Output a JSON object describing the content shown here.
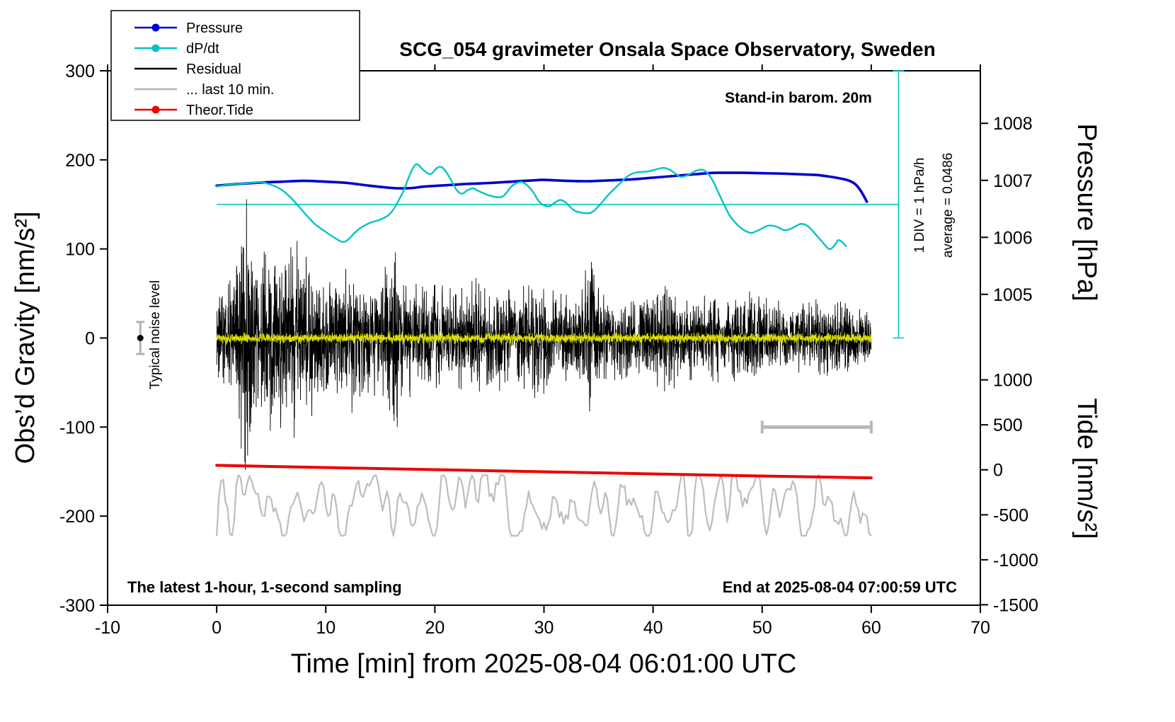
{
  "title": "SCG_054 gravimeter Onsala Space Observatory, Sweden",
  "annotations": {
    "barometer": "Stand-in barom. 20m",
    "sampling": "The latest 1-hour, 1-second sampling",
    "end_time": "End at 2025-08-04 07:00:59 UTC",
    "div_label": "1 DIV = 1 hPa/h",
    "average_label": "average = 0.0486",
    "noise_label": "Typical noise level"
  },
  "legend": {
    "items": [
      {
        "label": "Pressure",
        "color": "#0000cd",
        "marker": true
      },
      {
        "label": "dP/dt",
        "color": "#00c3c3",
        "marker": true
      },
      {
        "label": "Residual",
        "color": "#000000",
        "marker": false
      },
      {
        "label": "... last 10 min.",
        "color": "#b0b0b0",
        "marker": false
      },
      {
        "label": "Theor.Tide",
        "color": "#ee0000",
        "marker": true
      }
    ]
  },
  "axes": {
    "x": {
      "label": "Time [min] from 2025-08-04 06:01:00 UTC",
      "min": -10,
      "max": 70,
      "ticks": [
        -10,
        0,
        10,
        20,
        30,
        40,
        50,
        60,
        70
      ]
    },
    "y_left": {
      "label": "Obs’d Gravity [nm/s²]",
      "min": -300,
      "max": 300,
      "ticks": [
        -300,
        -200,
        -100,
        0,
        100,
        200,
        300
      ]
    },
    "y_right_pressure": {
      "label": "Pressure [hPa]",
      "ticks": [
        {
          "label": "1008",
          "g": 241
        },
        {
          "label": "1007",
          "g": 177
        },
        {
          "label": "1006",
          "g": 113
        },
        {
          "label": "1005",
          "g": 49
        }
      ]
    },
    "y_right_tide": {
      "label": "Tide [nm/s²]",
      "ticks": [
        {
          "label": "1000",
          "g": -47
        },
        {
          "label": "500",
          "g": -97.5
        },
        {
          "label": "0",
          "g": -148
        },
        {
          "label": "-500",
          "g": -198.5
        },
        {
          "label": "-1000",
          "g": -249
        },
        {
          "label": "-1500",
          "g": -299.5
        }
      ]
    }
  },
  "chart_data": {
    "type": "line",
    "title": "SCG_054 gravimeter Onsala Space Observatory, Sweden",
    "xlabel": "Time [min] from 2025-08-04 06:01:00 UTC",
    "ylabel": "Obs'd Gravity [nm/s2]",
    "xlim": [
      -10,
      70
    ],
    "ylim": [
      -300,
      300
    ],
    "series": [
      {
        "name": "Pressure",
        "color": "#0000cd",
        "width": 3.6,
        "points": [
          [
            0,
            171
          ],
          [
            2,
            173
          ],
          [
            4,
            174.5
          ],
          [
            6,
            175.5
          ],
          [
            8,
            176.5
          ],
          [
            10,
            175.5
          ],
          [
            12,
            174
          ],
          [
            14,
            171
          ],
          [
            16,
            168.5
          ],
          [
            17,
            168
          ],
          [
            18,
            168.5
          ],
          [
            19,
            170
          ],
          [
            21,
            171.5
          ],
          [
            23,
            173
          ],
          [
            25,
            174
          ],
          [
            27,
            175.5
          ],
          [
            29,
            177
          ],
          [
            30,
            177.5
          ],
          [
            32,
            176.5
          ],
          [
            34,
            176
          ],
          [
            36,
            177
          ],
          [
            38,
            178
          ],
          [
            40,
            180
          ],
          [
            42,
            182
          ],
          [
            44,
            184
          ],
          [
            45,
            185
          ],
          [
            46,
            185.5
          ],
          [
            48,
            185.5
          ],
          [
            50,
            185
          ],
          [
            52,
            184.5
          ],
          [
            54,
            183.5
          ],
          [
            55,
            183
          ],
          [
            56,
            181.5
          ],
          [
            57,
            179.5
          ],
          [
            58,
            176.5
          ],
          [
            58.6,
            172
          ],
          [
            59.1,
            164
          ],
          [
            59.6,
            153
          ]
        ]
      },
      {
        "name": "dP/dt",
        "color": "#00c3c3",
        "width": 2.4,
        "points": [
          [
            0,
            170
          ],
          [
            1,
            172
          ],
          [
            2,
            173
          ],
          [
            3,
            174
          ],
          [
            4,
            175
          ],
          [
            5,
            172
          ],
          [
            6,
            166
          ],
          [
            7,
            155
          ],
          [
            8,
            141
          ],
          [
            9,
            128
          ],
          [
            10,
            119
          ],
          [
            11,
            111
          ],
          [
            11.5,
            108
          ],
          [
            12,
            110
          ],
          [
            13,
            122
          ],
          [
            14,
            129
          ],
          [
            15,
            133
          ],
          [
            16,
            141
          ],
          [
            17,
            162
          ],
          [
            17.5,
            177
          ],
          [
            18,
            191
          ],
          [
            18.4,
            195
          ],
          [
            19,
            188
          ],
          [
            19.6,
            184
          ],
          [
            20.2,
            191
          ],
          [
            20.6,
            192
          ],
          [
            21,
            187
          ],
          [
            21.5,
            177
          ],
          [
            22,
            166
          ],
          [
            22.5,
            162
          ],
          [
            23,
            166
          ],
          [
            23.5,
            168
          ],
          [
            24,
            165
          ],
          [
            25,
            160
          ],
          [
            26,
            158
          ],
          [
            26.5,
            162
          ],
          [
            27,
            170
          ],
          [
            27.5,
            174
          ],
          [
            28,
            175
          ],
          [
            28.5,
            171
          ],
          [
            29,
            164
          ],
          [
            29.5,
            154
          ],
          [
            30,
            149
          ],
          [
            30.5,
            148
          ],
          [
            31,
            152
          ],
          [
            31.5,
            155
          ],
          [
            32,
            152
          ],
          [
            32.5,
            146
          ],
          [
            33,
            142
          ],
          [
            34,
            140
          ],
          [
            34.5,
            142
          ],
          [
            35,
            148
          ],
          [
            35.5,
            155
          ],
          [
            36,
            162
          ],
          [
            37,
            174
          ],
          [
            37.5,
            180
          ],
          [
            38,
            184
          ],
          [
            38.5,
            186
          ],
          [
            39.5,
            187
          ],
          [
            40.5,
            190
          ],
          [
            41,
            191
          ],
          [
            41.5,
            189
          ],
          [
            42,
            185
          ],
          [
            42.5,
            181
          ],
          [
            43,
            182
          ],
          [
            43.5,
            185
          ],
          [
            44,
            188
          ],
          [
            44.5,
            189
          ],
          [
            45,
            185
          ],
          [
            45.5,
            176
          ],
          [
            46,
            163
          ],
          [
            46.5,
            150
          ],
          [
            47,
            138
          ],
          [
            47.5,
            130
          ],
          [
            48,
            124
          ],
          [
            48.5,
            120
          ],
          [
            49,
            118
          ],
          [
            49.5,
            120
          ],
          [
            50,
            123
          ],
          [
            50.5,
            126
          ],
          [
            51,
            126
          ],
          [
            51.5,
            124
          ],
          [
            52,
            121
          ],
          [
            52.5,
            122
          ],
          [
            53,
            125
          ],
          [
            53.5,
            128
          ],
          [
            54,
            127
          ],
          [
            54.5,
            122
          ],
          [
            55,
            115
          ],
          [
            55.5,
            108
          ],
          [
            56,
            101
          ],
          [
            56.3,
            100
          ],
          [
            56.7,
            105
          ],
          [
            57,
            110
          ],
          [
            57.4,
            107
          ],
          [
            57.7,
            103
          ]
        ]
      },
      {
        "name": "Theor.Tide",
        "color": "#ee0000",
        "width": 4,
        "points": [
          [
            0,
            -143
          ],
          [
            5,
            -144.2
          ],
          [
            10,
            -145.4
          ],
          [
            15,
            -146.6
          ],
          [
            20,
            -147.8
          ],
          [
            25,
            -149
          ],
          [
            30,
            -150.2
          ],
          [
            35,
            -151.4
          ],
          [
            40,
            -152.6
          ],
          [
            45,
            -153.8
          ],
          [
            50,
            -155
          ],
          [
            55,
            -156
          ],
          [
            60,
            -157
          ]
        ]
      }
    ],
    "residual": {
      "name": "Residual",
      "color": "#000000",
      "samples_per_min": 60,
      "x_range": [
        0,
        60
      ],
      "center": 0,
      "envelope": [
        [
          0,
          45
        ],
        [
          0.8,
          55
        ],
        [
          1.2,
          70
        ],
        [
          1.6,
          88
        ],
        [
          2,
          112
        ],
        [
          2.4,
          135
        ],
        [
          2.8,
          140
        ],
        [
          3.2,
          126
        ],
        [
          3.6,
          110
        ],
        [
          4,
          97
        ],
        [
          4.5,
          102
        ],
        [
          5,
          106
        ],
        [
          5.5,
          96
        ],
        [
          6,
          88
        ],
        [
          6.5,
          93
        ],
        [
          7,
          101
        ],
        [
          7.5,
          96
        ],
        [
          8,
          87
        ],
        [
          8.5,
          80
        ],
        [
          9,
          76
        ],
        [
          9.5,
          82
        ],
        [
          10,
          86
        ],
        [
          10.5,
          77
        ],
        [
          11,
          71
        ],
        [
          11.5,
          66
        ],
        [
          12,
          71
        ],
        [
          12.5,
          76
        ],
        [
          13,
          70
        ],
        [
          13.5,
          64
        ],
        [
          14,
          60
        ],
        [
          14.5,
          63
        ],
        [
          15,
          66
        ],
        [
          15.5,
          72
        ],
        [
          16,
          88
        ],
        [
          16.5,
          96
        ],
        [
          17,
          76
        ],
        [
          17.5,
          62
        ],
        [
          18,
          56
        ],
        [
          18.5,
          53
        ],
        [
          19,
          51
        ],
        [
          19.5,
          53
        ],
        [
          20,
          56
        ],
        [
          21,
          51
        ],
        [
          22,
          49
        ],
        [
          23,
          56
        ],
        [
          23.5,
          66
        ],
        [
          24,
          56
        ],
        [
          25,
          51
        ],
        [
          26,
          53
        ],
        [
          27,
          49
        ],
        [
          28,
          51
        ],
        [
          29,
          61
        ],
        [
          30,
          56
        ],
        [
          31,
          46
        ],
        [
          32,
          43
        ],
        [
          33,
          51
        ],
        [
          34,
          72
        ],
        [
          34.4,
          86
        ],
        [
          34.8,
          62
        ],
        [
          35.2,
          47
        ],
        [
          36,
          43
        ],
        [
          37,
          41
        ],
        [
          38,
          43
        ],
        [
          39,
          46
        ],
        [
          40,
          51
        ],
        [
          41,
          56
        ],
        [
          41.5,
          63
        ],
        [
          42,
          51
        ],
        [
          43,
          43
        ],
        [
          44,
          41
        ],
        [
          45,
          43
        ],
        [
          46,
          46
        ],
        [
          47,
          43
        ],
        [
          48,
          51
        ],
        [
          49,
          46
        ],
        [
          50,
          41
        ],
        [
          51,
          39
        ],
        [
          52,
          36
        ],
        [
          53,
          34
        ],
        [
          54,
          36
        ],
        [
          55,
          39
        ],
        [
          56,
          41
        ],
        [
          57,
          46
        ],
        [
          58,
          39
        ],
        [
          59,
          36
        ],
        [
          60,
          33
        ]
      ]
    },
    "residual_recent": {
      "name": "... last 10 min.",
      "color": "#bdbdbd",
      "center": -188,
      "max_dev": 34,
      "x_range": [
        0,
        60
      ]
    },
    "filtered_trace": {
      "color": "#dcdc00",
      "center": 0,
      "amplitude": 9,
      "x_range": [
        0,
        60
      ]
    },
    "reference_lines": {
      "dpdt_zero": {
        "color": "#00c3c3",
        "y": 150,
        "x_range": [
          0,
          62.5
        ]
      },
      "div_axis": {
        "color": "#00c3c3",
        "x": 62.5,
        "y_range": [
          0,
          300
        ]
      }
    },
    "noise_marker": {
      "x": -7,
      "y": 0,
      "error": 18,
      "bar_color": "#b0b0b0",
      "dot_color": "#000000"
    },
    "scale_bar": {
      "x_range": [
        50,
        60
      ],
      "y": -100,
      "color": "#b8b8b8"
    }
  }
}
